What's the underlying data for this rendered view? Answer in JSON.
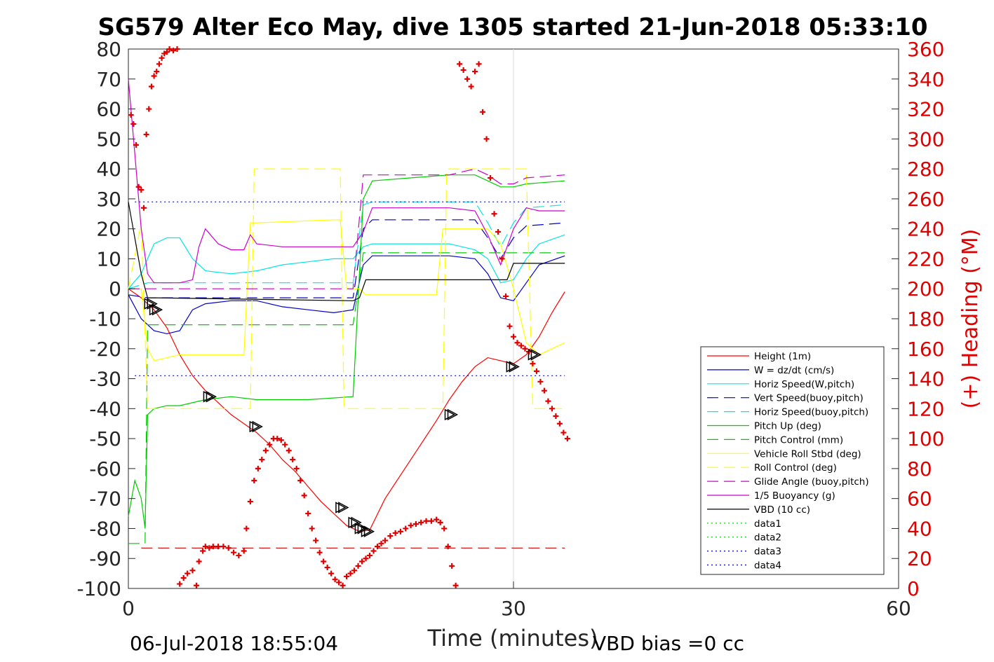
{
  "chart_data": {
    "type": "line",
    "title": "SG579 Alter Eco May, dive 1305 started 21-Jun-2018 05:33:10",
    "xlabel": "Time (minutes)",
    "ylabel_right": "(+) Heading (°M)",
    "footer_left": "06-Jul-2018 18:55:04",
    "footer_right": "VBD bias =0 cc",
    "xlim": [
      0,
      60
    ],
    "ylim_left": [
      -100,
      80
    ],
    "ylim_right": [
      0,
      360
    ],
    "x_ticks": [
      "0",
      "30",
      "60"
    ],
    "y_ticks_left": [
      "80",
      "70",
      "60",
      "50",
      "40",
      "30",
      "20",
      "10",
      "0",
      "-10",
      "-20",
      "-30",
      "-40",
      "-50",
      "-60",
      "-70",
      "-80",
      "-90",
      "-100"
    ],
    "y_ticks_right": [
      "360",
      "340",
      "320",
      "300",
      "280",
      "260",
      "240",
      "220",
      "200",
      "180",
      "160",
      "140",
      "120",
      "100",
      "80",
      "60",
      "40",
      "20",
      "0"
    ],
    "grid_x": [
      30
    ],
    "legend_position": "lower-right",
    "series": [
      {
        "name": "Height (1m)",
        "color": "#ff0000",
        "style": "solid",
        "x": [
          0,
          1,
          2,
          3,
          4,
          5,
          6,
          7,
          8,
          9,
          10,
          11,
          12,
          13,
          14,
          15,
          16,
          17,
          18,
          18.8,
          20,
          22,
          24,
          25,
          26,
          27,
          28,
          29,
          30,
          31,
          32,
          33,
          34
        ],
        "y": [
          0,
          -3,
          -7,
          -13,
          -22,
          -29,
          -34,
          -38,
          -42,
          -45,
          -48,
          -52,
          -57,
          -61,
          -66,
          -71,
          -75,
          -79,
          -81,
          -80.5,
          -70,
          -57,
          -44,
          -37,
          -31,
          -26,
          -23,
          -24,
          -25,
          -22,
          -16,
          -8,
          -1
        ]
      },
      {
        "name": "W = dz/dt (cm/s)",
        "color": "#0000cc",
        "style": "solid",
        "x": [
          0,
          1,
          2,
          3,
          4,
          5,
          6,
          8,
          10,
          12,
          14,
          16,
          17.5,
          18.3,
          19,
          22,
          25,
          27,
          28,
          29,
          30,
          31,
          32,
          34
        ],
        "y": [
          -2,
          -10,
          -14,
          -15,
          -14,
          -7,
          -5,
          -4,
          -4,
          -6,
          -7,
          -8,
          -7,
          8,
          11,
          11,
          11,
          10,
          5,
          -3,
          -4,
          2,
          8,
          11
        ]
      },
      {
        "name": "Horiz Speed(W,pitch)",
        "color": "#00e6e6",
        "style": "solid",
        "x": [
          0,
          1,
          1.5,
          2,
          3,
          4,
          5,
          6,
          8,
          10,
          12,
          14,
          16,
          17.5,
          18.3,
          19,
          22,
          25,
          27,
          28,
          29,
          30,
          31,
          32,
          34
        ],
        "y": [
          0,
          5,
          10,
          15,
          17,
          17,
          10,
          6,
          5,
          6,
          8,
          9,
          10,
          10,
          14,
          15,
          15,
          15,
          13,
          10,
          2,
          3,
          10,
          15,
          18
        ]
      },
      {
        "name": "Vert Speed(buoy,pitch)",
        "color": "#0000cc",
        "style": "dashed",
        "x": [
          0,
          1.5,
          2,
          17.5,
          18.3,
          19,
          25,
          27,
          28,
          29,
          30,
          31,
          34
        ],
        "y": [
          -2,
          -3,
          -3,
          -3,
          20,
          23,
          23,
          23,
          17,
          10,
          17,
          21,
          22
        ]
      },
      {
        "name": "Horiz Speed(buoy,pitch)",
        "color": "#00e6e6",
        "style": "dashed",
        "x": [
          0,
          1.5,
          2,
          17.5,
          18.3,
          19,
          25,
          27,
          28,
          29,
          30,
          31,
          34
        ],
        "y": [
          0,
          2,
          2,
          2,
          28,
          29,
          29,
          29,
          22,
          14,
          22,
          27,
          28
        ]
      },
      {
        "name": "Pitch Up (deg)",
        "color": "#00cc00",
        "style": "solid",
        "x": [
          0,
          0.5,
          1,
          1.3,
          1.5,
          2,
          3,
          4,
          6,
          8,
          10,
          12,
          14,
          17.5,
          18.3,
          19,
          22,
          25,
          27,
          28,
          29,
          30,
          31,
          34
        ],
        "y": [
          -76,
          -64,
          -70,
          -80,
          -42,
          -40,
          -39,
          -39,
          -37,
          -36,
          -37,
          -37,
          -37,
          -36,
          30,
          36,
          37,
          38,
          38,
          36,
          34,
          34,
          35,
          36
        ]
      },
      {
        "name": "Pitch Control (mm)",
        "color": "#00cc00",
        "style": "dashed",
        "x": [
          0,
          1,
          1.3,
          1.5,
          2,
          17.5,
          18.3,
          19,
          25,
          27,
          28,
          29,
          30,
          34
        ],
        "y": [
          -85,
          -85,
          -85,
          -12,
          -12,
          -12,
          12,
          12,
          12,
          12,
          12,
          12,
          12,
          12
        ]
      },
      {
        "name": "Vehicle Roll Stbd (deg)",
        "color": "#ffff00",
        "style": "solid",
        "x": [
          0,
          1,
          1.5,
          2,
          4,
          5.5,
          6,
          9,
          9.5,
          10,
          16,
          16.5,
          17,
          18,
          18.5,
          19,
          24,
          24.5,
          25,
          26,
          27,
          28,
          29,
          30,
          31,
          32,
          33,
          34
        ],
        "y": [
          0,
          0,
          -20,
          -24,
          -22,
          -22,
          -22,
          -22,
          22,
          22,
          23,
          23,
          0,
          0,
          -2,
          -2,
          -2,
          20,
          20,
          20,
          20,
          20,
          15,
          0,
          -18,
          -22,
          -20,
          -18
        ]
      },
      {
        "name": "Roll Control (deg)",
        "color": "#ffff00",
        "style": "dashed",
        "x": [
          0,
          1,
          1.5,
          6,
          6.2,
          9.5,
          9.8,
          16.5,
          16.8,
          24.5,
          24.8,
          31,
          31.5,
          34
        ],
        "y": [
          0,
          22,
          -40,
          -40,
          -40,
          -40,
          40,
          40,
          -40,
          -40,
          40,
          40,
          -40,
          -40
        ]
      },
      {
        "name": "Glide Angle (buoy,pitch)",
        "color": "#cc00cc",
        "style": "dashed",
        "x": [
          0,
          1.5,
          2,
          17.5,
          18.3,
          19,
          25,
          27,
          28,
          29,
          30,
          31,
          34
        ],
        "y": [
          0,
          0,
          0,
          0,
          38,
          38,
          38,
          40,
          38,
          35,
          35,
          37,
          38
        ]
      },
      {
        "name": "1/5 Buoyancy (g)",
        "color": "#cc00cc",
        "style": "solid",
        "x": [
          0,
          0.5,
          1,
          1.5,
          2,
          4,
          5,
          5.5,
          6,
          7,
          8,
          9,
          9.5,
          10,
          12,
          14,
          16,
          17.5,
          18.3,
          19,
          22,
          25,
          27,
          28,
          29,
          30,
          31,
          32,
          34
        ],
        "y": [
          70,
          45,
          20,
          5,
          2,
          2,
          3,
          14,
          20,
          15,
          13,
          13,
          18,
          15,
          14,
          14,
          14,
          14,
          19,
          27,
          27,
          27,
          26,
          18,
          8,
          20,
          27,
          26,
          26
        ]
      },
      {
        "name": "VBD (10 cc)",
        "color": "#000000",
        "style": "solid",
        "x": [
          0,
          1,
          1.5,
          2,
          17.5,
          18,
          18.5,
          19,
          24.5,
          25,
          29.5,
          30,
          34
        ],
        "y": [
          29,
          5,
          -3,
          -3,
          -4,
          -3,
          3,
          3,
          3,
          3,
          3,
          8.5,
          8.5
        ]
      },
      {
        "name": "data1",
        "color": "#00cc00",
        "style": "dotted",
        "x": [],
        "y": []
      },
      {
        "name": "data2",
        "color": "#00cc00",
        "style": "dotted",
        "x": [],
        "y": []
      },
      {
        "name": "data3",
        "color": "#0000cc",
        "style": "dotted",
        "x": [
          0.5,
          34
        ],
        "y": [
          29,
          29
        ]
      },
      {
        "name": "data4",
        "color": "#0000cc",
        "style": "dotted",
        "x": [
          0.5,
          34
        ],
        "y": [
          -29,
          -29
        ]
      }
    ],
    "extra_lines": [
      {
        "color": "#cc0000",
        "style": "dashed",
        "x": [
          1,
          34
        ],
        "y": [
          -86.5,
          -86.5
        ]
      }
    ],
    "heading_points": {
      "color": "#e00000",
      "marker": "+",
      "axis": "right",
      "x": [
        0.2,
        0.4,
        0.6,
        0.8,
        1.0,
        1.2,
        1.4,
        1.6,
        1.8,
        2.0,
        2.2,
        2.4,
        2.6,
        2.8,
        3.0,
        3.2,
        3.5,
        3.8,
        4.0,
        4.3,
        4.6,
        5.0,
        5.3,
        5.5,
        5.8,
        6.0,
        6.3,
        6.6,
        7.0,
        7.4,
        7.8,
        8.2,
        8.6,
        9.0,
        9.2,
        9.5,
        9.8,
        10.1,
        10.4,
        10.7,
        11.0,
        11.3,
        11.6,
        11.9,
        12.2,
        12.5,
        12.8,
        13.1,
        13.4,
        13.7,
        14.0,
        14.3,
        14.6,
        14.9,
        15.2,
        15.5,
        15.8,
        16.1,
        16.4,
        16.7,
        17.0,
        17.3,
        17.6,
        17.9,
        18.2,
        18.5,
        18.8,
        19.1,
        19.4,
        19.7,
        20.0,
        20.4,
        20.8,
        21.2,
        21.6,
        22.0,
        22.4,
        22.8,
        23.2,
        23.6,
        24.0,
        24.3,
        24.6,
        24.9,
        25.2,
        25.5,
        25.8,
        26.1,
        26.4,
        26.7,
        27.0,
        27.3,
        27.6,
        27.9,
        28.2,
        28.5,
        28.8,
        29.1,
        29.4,
        29.7,
        30.0,
        30.3,
        30.6,
        30.9,
        31.2,
        31.5,
        31.8,
        32.1,
        32.4,
        32.7,
        33.0,
        33.3,
        33.6,
        33.9,
        34.2
      ],
      "y": [
        316,
        310,
        296,
        268,
        266,
        254,
        303,
        320,
        335,
        342,
        345,
        350,
        354,
        357,
        358,
        360,
        359,
        362,
        3,
        7,
        10,
        12,
        2,
        18,
        25,
        28,
        27,
        28,
        28,
        28,
        27,
        24,
        22,
        25,
        40,
        58,
        72,
        80,
        86,
        92,
        96,
        100,
        100,
        99,
        96,
        92,
        86,
        80,
        72,
        62,
        50,
        40,
        32,
        24,
        18,
        14,
        10,
        6,
        4,
        2,
        8,
        10,
        12,
        15,
        18,
        20,
        22,
        25,
        28,
        30,
        32,
        35,
        37,
        38,
        40,
        42,
        43,
        44,
        45,
        45,
        46,
        44,
        40,
        28,
        15,
        2,
        350,
        346,
        340,
        335,
        345,
        350,
        318,
        300,
        274,
        250,
        238,
        220,
        195,
        175,
        168,
        164,
        162,
        160,
        158,
        150,
        145,
        138,
        132,
        125,
        120,
        115,
        110,
        104,
        100
      ]
    },
    "triangle_markers": {
      "color": "#000000",
      "x": [
        1.6,
        2.0,
        6.2,
        9.8,
        16.5,
        17.5,
        18.0,
        18.5,
        25.0,
        29.8,
        31.5
      ],
      "y": [
        -5,
        -7,
        -36,
        -46,
        -73,
        -78,
        -80,
        -81,
        -42,
        -26,
        -22
      ]
    }
  }
}
